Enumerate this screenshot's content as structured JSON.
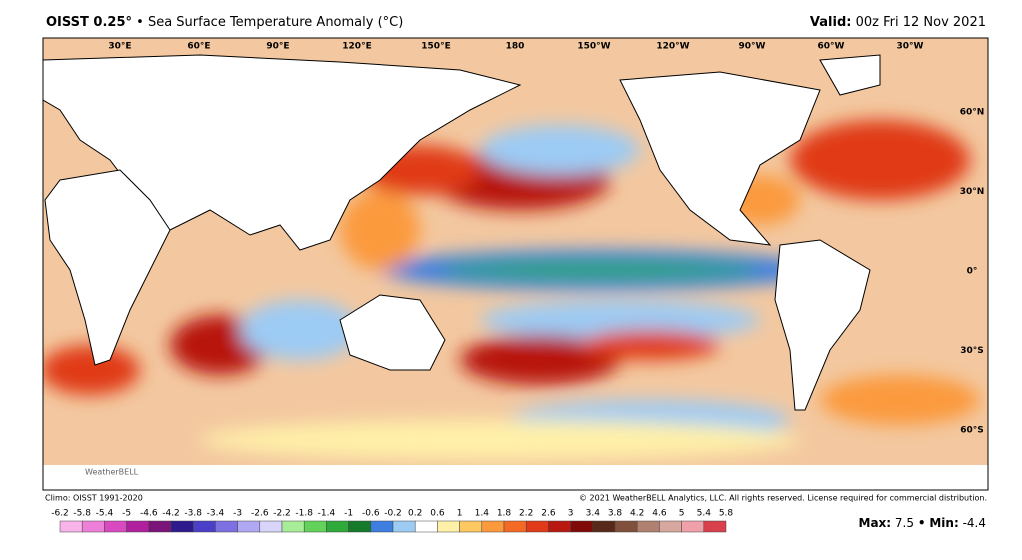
{
  "header": {
    "title": "OISST 0.25°",
    "subtitle": "• Sea Surface Temperature Anomaly (°C)",
    "valid_label": "Valid:",
    "valid_time": "00z Fri 12 Nov 2021"
  },
  "map": {
    "longitude_labels": [
      "30°E",
      "60°E",
      "90°E",
      "120°E",
      "150°E",
      "180",
      "150°W",
      "120°W",
      "90°W",
      "60°W",
      "30°W"
    ],
    "latitude_labels": [
      "60°N",
      "30°N",
      "0°",
      "30°S",
      "60°S"
    ],
    "logo": "WeatherBELL"
  },
  "footer": {
    "climo": "Climo: OISST 1991-2020",
    "copyright": "© 2021 WeatherBELL Analytics, LLC. All rights reserved. License required for commercial distribution."
  },
  "colorbar": {
    "labels": [
      "-6.2",
      "-5.8",
      "-5.4",
      "-5",
      "-4.6",
      "-4.2",
      "-3.8",
      "-3.4",
      "-3",
      "-2.6",
      "-2.2",
      "-1.8",
      "-1.4",
      "-1",
      "-0.6",
      "-0.2",
      "0.2",
      "0.6",
      "1",
      "1.4",
      "1.8",
      "2.2",
      "2.6",
      "3",
      "3.4",
      "3.8",
      "4.2",
      "4.6",
      "5",
      "5.4",
      "5.8"
    ],
    "colors": [
      "#f8b4e8",
      "#ee7fd8",
      "#d94ac0",
      "#b0209e",
      "#7a1478",
      "#2e1a8c",
      "#4b3fc8",
      "#7c70e2",
      "#b0a8f2",
      "#d8d4fa",
      "#a8ec98",
      "#62d25a",
      "#2eaa3a",
      "#157a2a",
      "#3d7ee0",
      "#9ccbf4",
      "#ffffff",
      "#fff0a8",
      "#fdc862",
      "#fb9a3c",
      "#f46a24",
      "#e03a18",
      "#b81810",
      "#800a08",
      "#582818",
      "#80503c",
      "#b08070",
      "#d8a8a0",
      "#f0a0a8",
      "#d8404c"
    ]
  },
  "stats": {
    "max_label": "Max:",
    "max_value": "7.5",
    "separator": "•",
    "min_label": "Min:",
    "min_value": "-4.4"
  }
}
